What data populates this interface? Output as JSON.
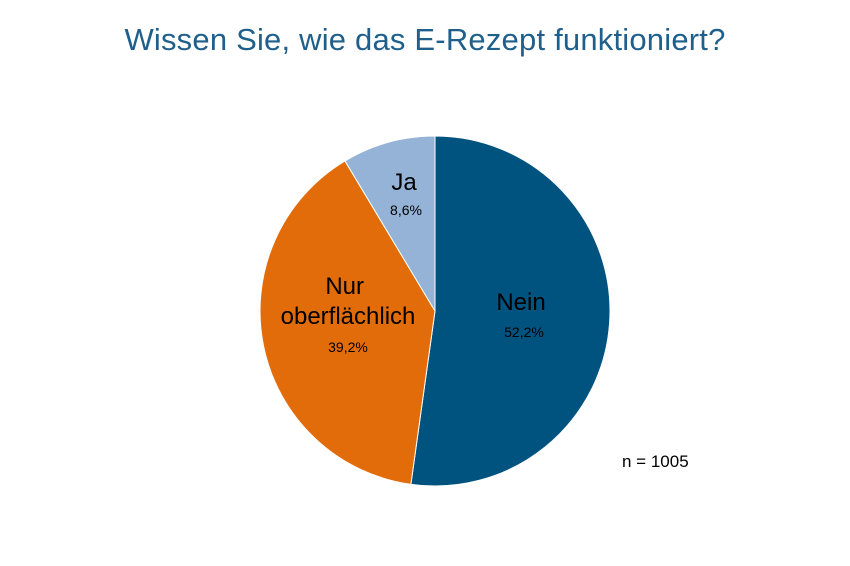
{
  "chart_data": {
    "type": "pie",
    "title": "Wissen Sie, wie das E-Rezept funktioniert?",
    "slices": [
      {
        "label": "Nein",
        "value": 52.2,
        "value_label": "52,2%",
        "color": "#00527f"
      },
      {
        "label": "Nur oberflächlich",
        "value": 39.2,
        "value_label": "39,2%",
        "color": "#e36c0a"
      },
      {
        "label": "Ja",
        "value": 8.6,
        "value_label": "8,6%",
        "color": "#95b3d7"
      }
    ],
    "start_angle": "12 o'clock",
    "direction": "clockwise",
    "legend": "none",
    "annotation": "n = 1005"
  }
}
